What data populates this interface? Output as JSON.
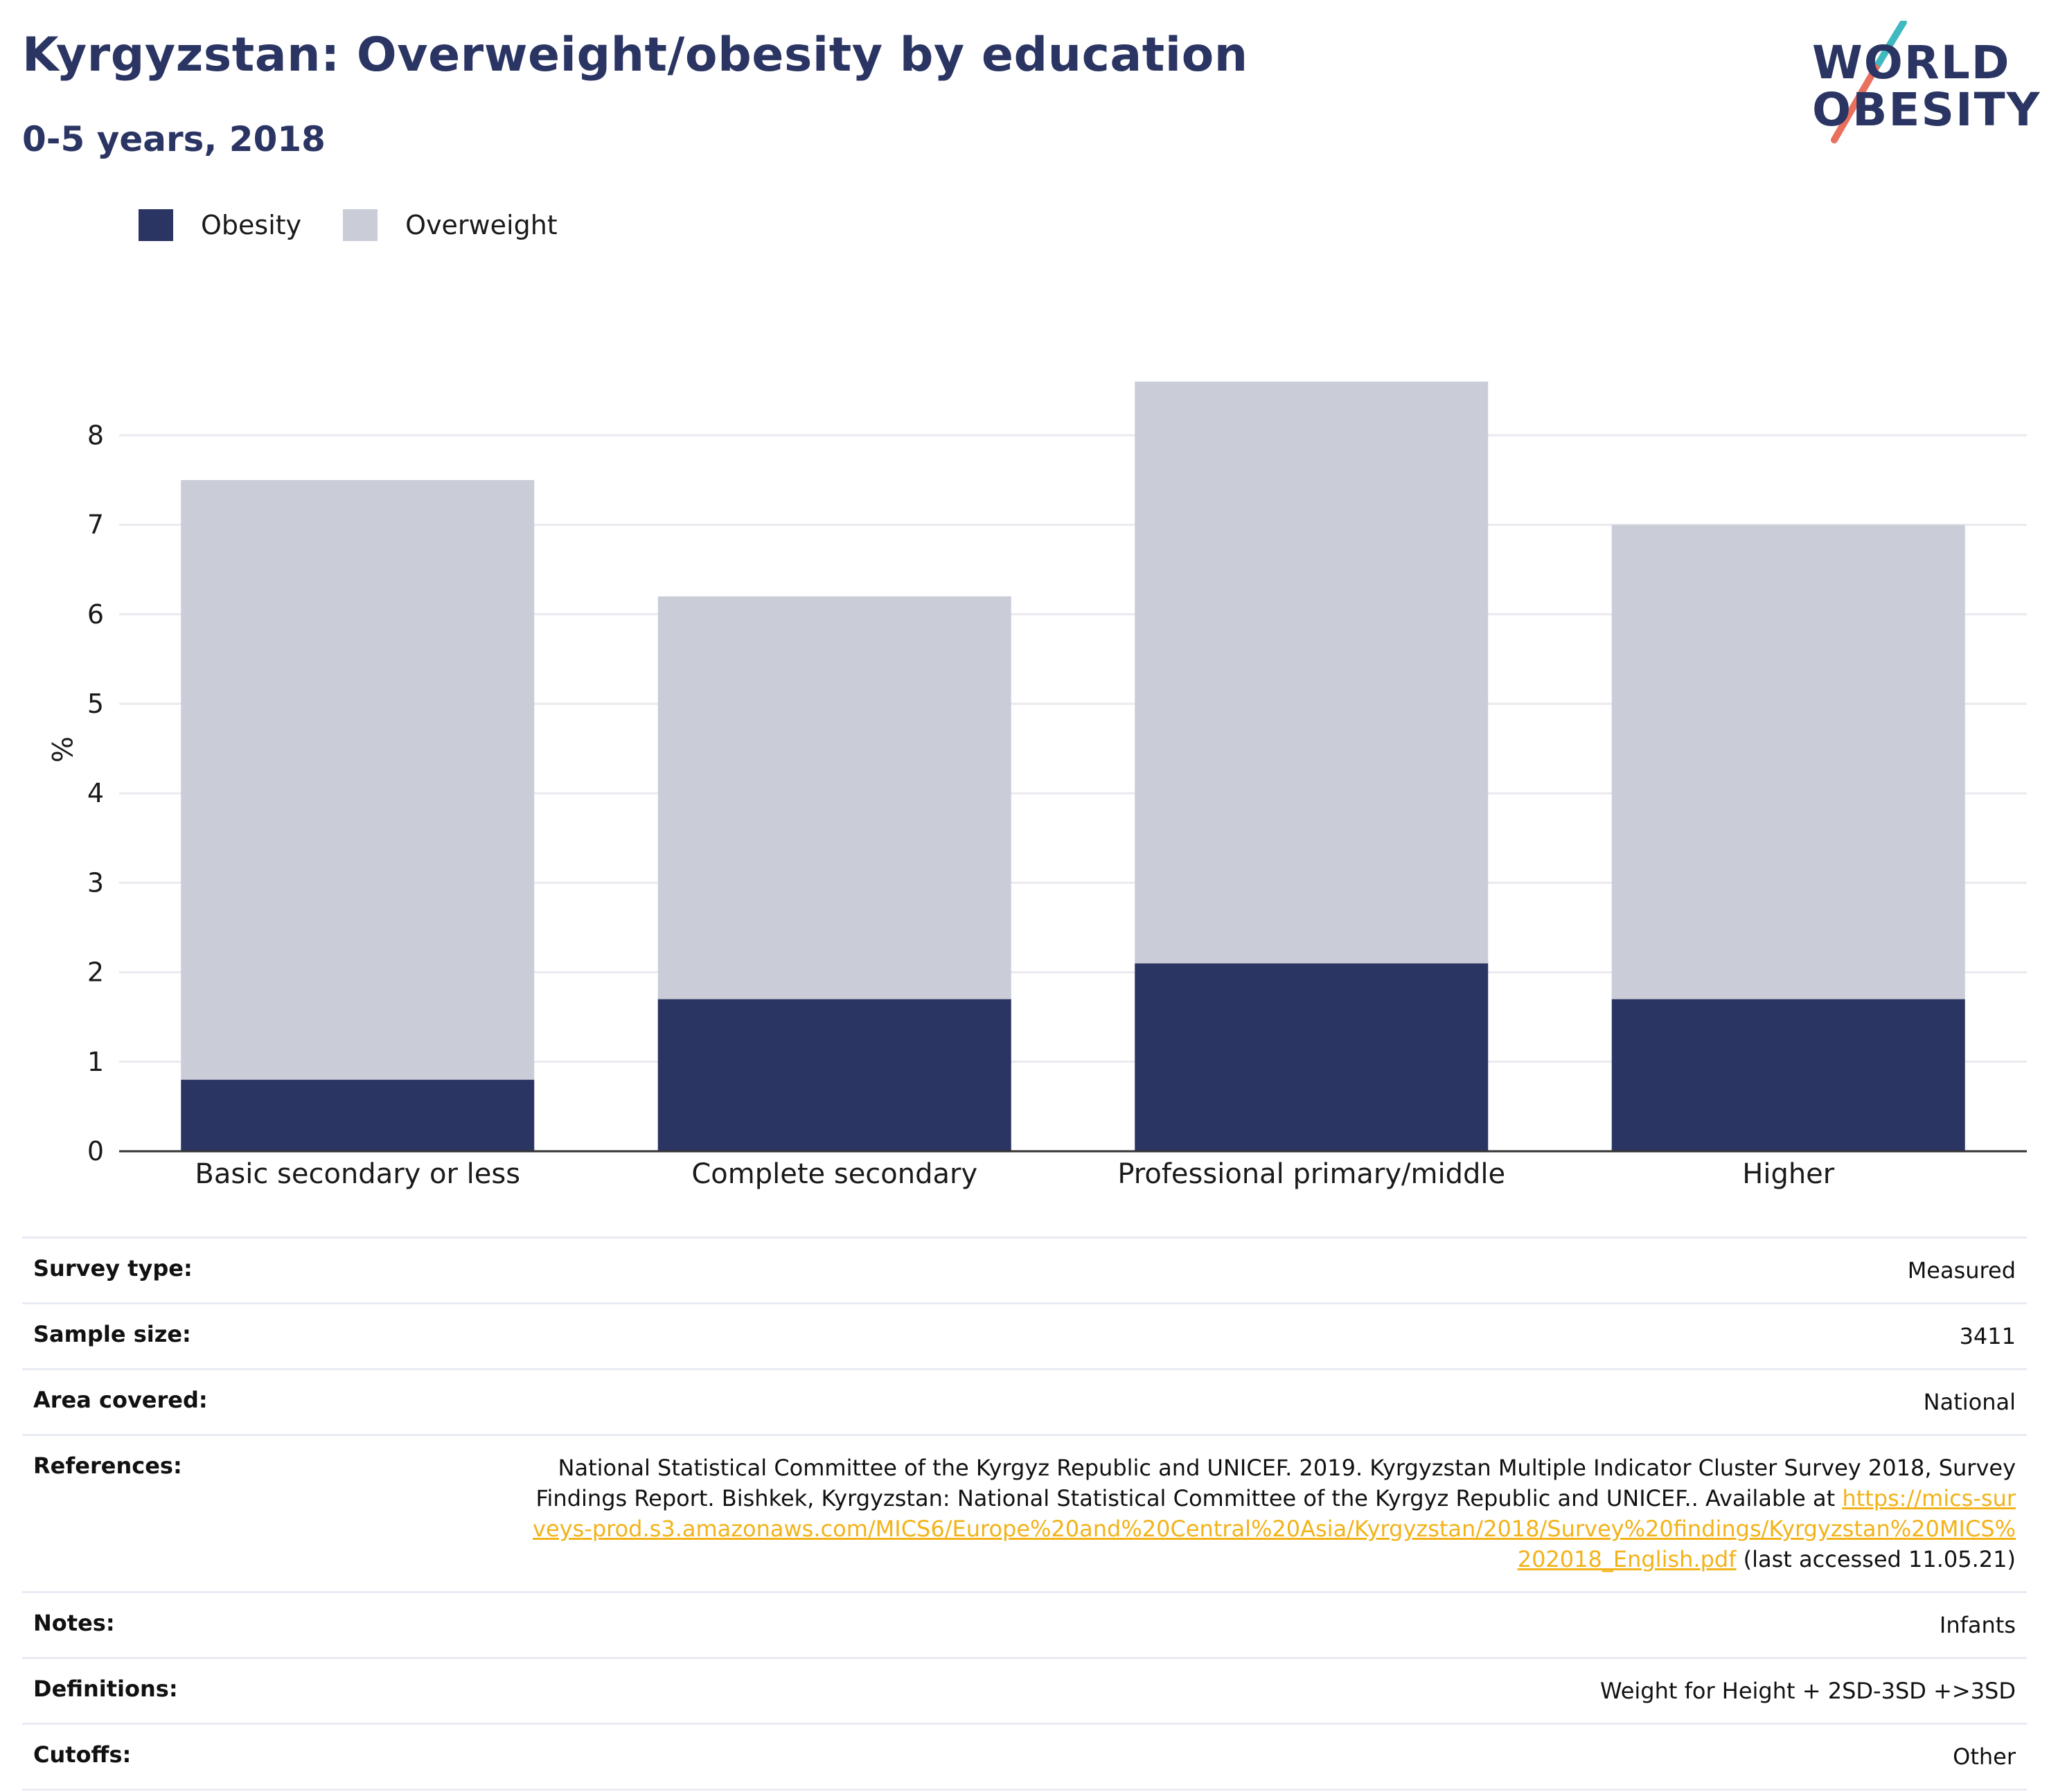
{
  "header": {
    "title": "Kyrgyzstan: Overweight/obesity by education",
    "subtitle": "0-5 years, 2018"
  },
  "logo": {
    "line1": "WORLD",
    "line2": "OBESITY",
    "text_color": "#2b3563",
    "slash_colors": [
      "#3fb8c0",
      "#e8705c"
    ]
  },
  "legend": {
    "items": [
      {
        "label": "Obesity",
        "color": "#2b3563"
      },
      {
        "label": "Overweight",
        "color": "#cacdd8"
      }
    ]
  },
  "chart_data": {
    "type": "bar",
    "stacked": true,
    "categories": [
      "Basic secondary or less",
      "Complete secondary",
      "Professional primary/middle",
      "Higher"
    ],
    "series": [
      {
        "name": "Obesity",
        "color": "#2b3563",
        "values": [
          0.8,
          1.7,
          2.1,
          1.7
        ]
      },
      {
        "name": "Overweight",
        "color": "#cacdd8",
        "values": [
          6.7,
          4.5,
          6.5,
          5.3
        ]
      }
    ],
    "totals": [
      7.5,
      6.2,
      8.6,
      7.0
    ],
    "ylabel": "%",
    "xlabel": "",
    "ylim": [
      0,
      9.2
    ],
    "yticks": [
      0,
      1,
      2,
      3,
      4,
      5,
      6,
      7,
      8
    ],
    "grid": true,
    "legend_position": "top-left"
  },
  "meta": {
    "survey_type": {
      "key": "Survey type:",
      "value": "Measured"
    },
    "sample_size": {
      "key": "Sample size:",
      "value": "3411"
    },
    "area_covered": {
      "key": "Area covered:",
      "value": "National"
    },
    "references": {
      "key": "References:",
      "text": "National Statistical Committee of the Kyrgyz Republic and UNICEF. 2019. Kyrgyzstan Multiple Indicator Cluster Survey 2018, Survey Findings Report. Bishkek, Kyrgyzstan: National Statistical Committee of the Kyrgyz Republic and UNICEF.. Available at ",
      "link": "https://mics-surveys-prod.s3.amazonaws.com/MICS6/Europe%20and%20Central%20Asia/Kyrgyzstan/2018/Survey%20findings/Kyrgyzstan%20MICS%202018_English.pdf",
      "suffix": " (last accessed 11.05.21)"
    },
    "notes": {
      "key": "Notes:",
      "value": "Infants"
    },
    "definitions": {
      "key": "Definitions:",
      "value": "Weight for Height + 2SD-3SD +>3SD"
    },
    "cutoffs": {
      "key": "Cutoffs:",
      "value": "Other"
    }
  }
}
